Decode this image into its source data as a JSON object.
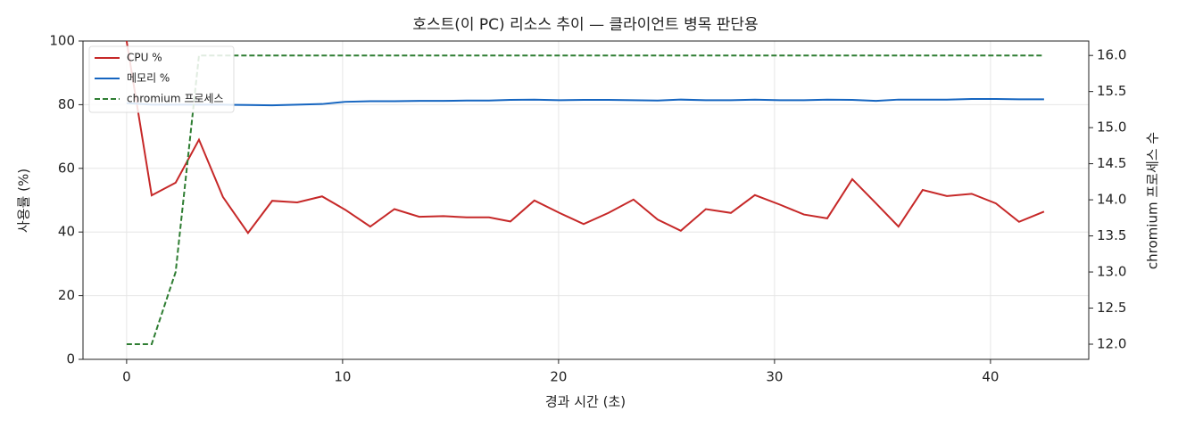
{
  "chart_data": {
    "type": "line",
    "title": "호스트(이 PC) 리소스 추이 — 클라이언트 병목 판단용",
    "x_label": "경과 시간 (초)",
    "y_label": "사용률 (%)",
    "y2_label": "chromium 프로세스 수",
    "x": [
      0,
      1.16,
      2.27,
      3.35,
      4.46,
      5.62,
      6.74,
      7.9,
      9.05,
      10.12,
      11.28,
      12.4,
      13.55,
      14.67,
      15.74,
      16.78,
      17.77,
      18.88,
      20.04,
      21.16,
      22.31,
      23.47,
      24.59,
      25.66,
      26.82,
      27.98,
      29.09,
      30.25,
      31.36,
      32.44,
      33.6,
      34.7,
      35.74,
      36.86,
      37.98,
      39.13,
      40.25,
      41.32,
      42.48
    ],
    "series": [
      {
        "name": "CPU %",
        "color": "#c62828",
        "values": [
          100,
          51.5,
          55.5,
          69,
          51,
          39.7,
          49.8,
          49.3,
          51.2,
          47,
          41.7,
          47.2,
          44.8,
          45,
          44.6,
          44.6,
          43.3,
          49.9,
          46,
          42.5,
          46,
          50.2,
          43.9,
          40.4,
          47.2,
          46,
          51.6,
          48.6,
          45.5,
          44.3,
          56.6,
          49,
          41.7,
          53.2,
          51.3,
          52,
          49,
          43.2,
          46.4
        ]
      },
      {
        "name": "메모리 %",
        "color": "#1565c0",
        "values": [
          80.5,
          80,
          80,
          80,
          80,
          79.9,
          79.8,
          80,
          80.2,
          80.9,
          81.1,
          81.1,
          81.2,
          81.2,
          81.3,
          81.3,
          81.5,
          81.6,
          81.4,
          81.5,
          81.5,
          81.4,
          81.3,
          81.6,
          81.4,
          81.4,
          81.6,
          81.4,
          81.4,
          81.6,
          81.5,
          81.2,
          81.6,
          81.6,
          81.6,
          81.8,
          81.8,
          81.7,
          81.7
        ]
      },
      {
        "name": "chromium 프로세스",
        "color": "#2e7d32",
        "dashed": true,
        "axis": "y2",
        "values": [
          12,
          12,
          13,
          16,
          16,
          16,
          16,
          16,
          16,
          16,
          16,
          16,
          16,
          16,
          16,
          16,
          16,
          16,
          16,
          16,
          16,
          16,
          16,
          16,
          16,
          16,
          16,
          16,
          16,
          16,
          16,
          16,
          16,
          16,
          16,
          16,
          16,
          16,
          16
        ]
      }
    ],
    "xlim": [
      -2.02,
      44.55
    ],
    "xticks": [
      0,
      10,
      20,
      30,
      40
    ],
    "ylim": [
      0,
      100
    ],
    "yticks": [
      0,
      20,
      40,
      60,
      80,
      100
    ],
    "y2lim": [
      11.79,
      16.2
    ],
    "y2ticks": [
      {
        "value": 12,
        "label": "12.0"
      },
      12.5,
      {
        "value": 13,
        "label": "13.0"
      },
      13.5,
      {
        "value": 14,
        "label": "14.0"
      },
      14.5,
      {
        "value": 15,
        "label": "15.0"
      },
      15.5,
      {
        "value": 16,
        "label": "16.0"
      }
    ],
    "grid": true,
    "legend": "upper left"
  }
}
